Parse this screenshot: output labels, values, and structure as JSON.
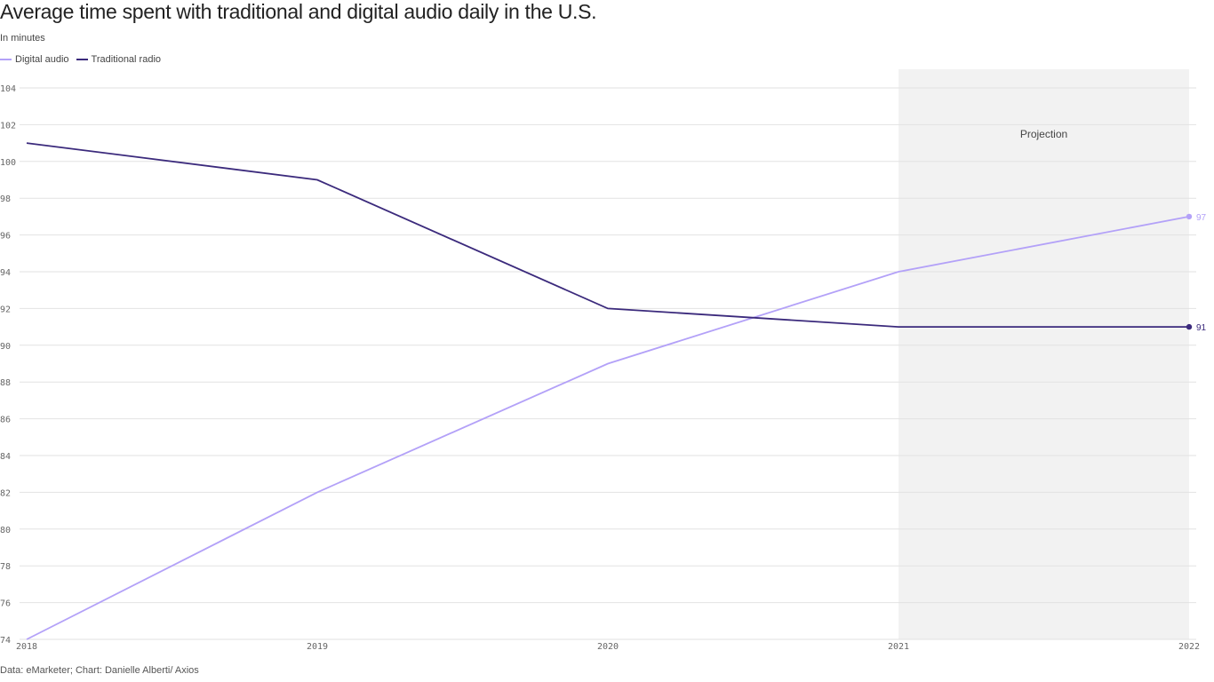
{
  "chart_data": {
    "type": "line",
    "title": "Average time spent with traditional and digital audio daily in the U.S.",
    "subtitle": "In minutes",
    "source": "Data: eMarketer; Chart: Danielle Alberti/ Axios",
    "x": [
      2018,
      2019,
      2020,
      2021,
      2022
    ],
    "x_tick_labels": [
      "2018",
      "2019",
      "2020",
      "2021",
      "2022"
    ],
    "ylim": [
      74,
      104
    ],
    "y_ticks": [
      74,
      76,
      78,
      80,
      82,
      84,
      86,
      88,
      90,
      92,
      94,
      96,
      98,
      100,
      102,
      104
    ],
    "grid": true,
    "legend_placement": "top-left",
    "annotation": {
      "label": "Projection",
      "x_range": [
        2021,
        2022
      ],
      "color": "#f2f2f2"
    },
    "series": [
      {
        "name": "Digital audio",
        "values": [
          74,
          82,
          89,
          94,
          97
        ],
        "color": "#b3a1f8",
        "end_label": "97"
      },
      {
        "name": "Traditional radio",
        "values": [
          101,
          99,
          92,
          91,
          91
        ],
        "color": "#3b2a7c",
        "end_label": "91"
      }
    ]
  }
}
